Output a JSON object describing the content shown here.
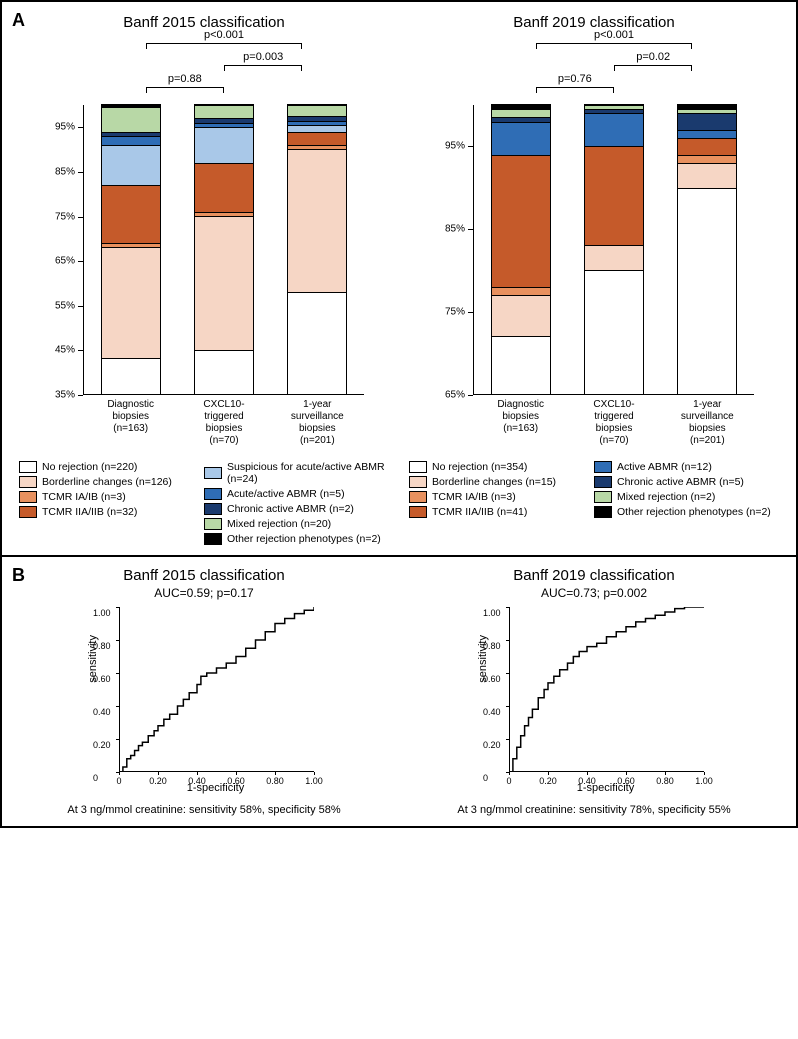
{
  "panelA": {
    "label": "A",
    "charts": [
      {
        "title": "Banff 2015 classification",
        "y_min": 35,
        "y_max": 100,
        "y_step": 10,
        "y_suffix": "%",
        "pvalues": [
          {
            "from": 0,
            "to": 1,
            "text": "p=0.88",
            "level": 2
          },
          {
            "from": 1,
            "to": 2,
            "text": "p=0.003",
            "level": 1
          },
          {
            "from": 0,
            "to": 2,
            "text": "p<0.001",
            "level": 0
          }
        ],
        "categories": [
          {
            "lines": [
              "Diagnostic",
              "biopsies",
              "(n=163)"
            ]
          },
          {
            "lines": [
              "CXCL10-",
              "triggered",
              "biopsies",
              "(n=70)"
            ]
          },
          {
            "lines": [
              "1-year",
              "surveillance",
              "biopsies",
              "(n=201)"
            ]
          }
        ],
        "series_order": [
          "no_rej",
          "borderline",
          "tcmr1",
          "tcmr2",
          "susp_abmr",
          "acute_abmr",
          "chronic_abmr",
          "mixed",
          "other"
        ],
        "bars": [
          {
            "no_rej": 43,
            "borderline": 25,
            "tcmr1": 1,
            "tcmr2": 13,
            "susp_abmr": 9,
            "acute_abmr": 2,
            "chronic_abmr": 1,
            "mixed": 5.5,
            "other": 0.5
          },
          {
            "no_rej": 45,
            "borderline": 30,
            "tcmr1": 1,
            "tcmr2": 11,
            "susp_abmr": 8,
            "acute_abmr": 1,
            "chronic_abmr": 1,
            "mixed": 3,
            "other": 0
          },
          {
            "no_rej": 58,
            "borderline": 32,
            "tcmr1": 1,
            "tcmr2": 3,
            "susp_abmr": 1.5,
            "acute_abmr": 1,
            "chronic_abmr": 1,
            "mixed": 2.5,
            "other": 0
          }
        ],
        "legend_cols": [
          [
            {
              "key": "no_rej",
              "label": "No rejection (n=220)"
            },
            {
              "key": "borderline",
              "label": "Borderline changes (n=126)"
            },
            {
              "key": "tcmr1",
              "label": "TCMR IA/IB (n=3)"
            },
            {
              "key": "tcmr2",
              "label": "TCMR IIA/IIB (n=32)"
            }
          ],
          [
            {
              "key": "susp_abmr",
              "label": "Suspicious for acute/active ABMR (n=24)"
            },
            {
              "key": "acute_abmr",
              "label": "Acute/active ABMR (n=5)"
            },
            {
              "key": "chronic_abmr",
              "label": "Chronic active ABMR (n=2)"
            },
            {
              "key": "mixed",
              "label": "Mixed rejection (n=20)"
            },
            {
              "key": "other",
              "label": "Other rejection phenotypes (n=2)"
            }
          ]
        ]
      },
      {
        "title": "Banff 2019 classification",
        "y_min": 65,
        "y_max": 100,
        "y_step": 10,
        "y_suffix": "%",
        "pvalues": [
          {
            "from": 0,
            "to": 1,
            "text": "p=0.76",
            "level": 2
          },
          {
            "from": 1,
            "to": 2,
            "text": "p=0.02",
            "level": 1
          },
          {
            "from": 0,
            "to": 2,
            "text": "p<0.001",
            "level": 0
          }
        ],
        "categories": [
          {
            "lines": [
              "Diagnostic",
              "biopsies",
              "(n=163)"
            ]
          },
          {
            "lines": [
              "CXCL10-",
              "triggered",
              "biopsies",
              "(n=70)"
            ]
          },
          {
            "lines": [
              "1-year",
              "surveillance",
              "biopsies",
              "(n=201)"
            ]
          }
        ],
        "series_order": [
          "no_rej",
          "borderline",
          "tcmr1",
          "tcmr2",
          "active_abmr",
          "chronic_abmr2",
          "mixed",
          "other"
        ],
        "bars": [
          {
            "no_rej": 72,
            "borderline": 5,
            "tcmr1": 1,
            "tcmr2": 16,
            "active_abmr": 4,
            "chronic_abmr2": 0.5,
            "mixed": 1,
            "other": 0.5
          },
          {
            "no_rej": 80,
            "borderline": 3,
            "tcmr1": 0,
            "tcmr2": 12,
            "active_abmr": 4,
            "chronic_abmr2": 0.5,
            "mixed": 0.5,
            "other": 0
          },
          {
            "no_rej": 90,
            "borderline": 3,
            "tcmr1": 1,
            "tcmr2": 2,
            "active_abmr": 1,
            "chronic_abmr2": 2,
            "mixed": 0.5,
            "other": 0.5
          }
        ],
        "legend_cols": [
          [
            {
              "key": "no_rej",
              "label": "No rejection (n=354)"
            },
            {
              "key": "borderline",
              "label": "Borderline changes (n=15)"
            },
            {
              "key": "tcmr1",
              "label": "TCMR IA/IB (n=3)"
            },
            {
              "key": "tcmr2",
              "label": "TCMR IIA/IIB (n=41)"
            }
          ],
          [
            {
              "key": "active_abmr",
              "label": "Active ABMR (n=12)"
            },
            {
              "key": "chronic_abmr2",
              "label": "Chronic active ABMR (n=5)"
            },
            {
              "key": "mixed",
              "label": "Mixed rejection (n=2)"
            },
            {
              "key": "other",
              "label": "Other rejection phenotypes (n=2)"
            }
          ]
        ]
      }
    ]
  },
  "panelB": {
    "label": "B",
    "charts": [
      {
        "title": "Banff 2015 classification",
        "auc_text": "AUC=0.59; p=0.17",
        "ticks": [
          0,
          0.2,
          0.4,
          0.6,
          0.8,
          1.0
        ],
        "tick_labels": [
          "0",
          "0.20",
          "0.40",
          "0.60",
          "0.80",
          "1.00"
        ],
        "xlabel": "1-specificity",
        "ylabel": "sensitivity",
        "caption": "At 3 ng/mmol creatinine:  sensitivity 58%, specificity 58%",
        "roc_points": [
          [
            0,
            0
          ],
          [
            0.02,
            0.03
          ],
          [
            0.04,
            0.08
          ],
          [
            0.06,
            0.1
          ],
          [
            0.08,
            0.13
          ],
          [
            0.1,
            0.16
          ],
          [
            0.12,
            0.18
          ],
          [
            0.15,
            0.22
          ],
          [
            0.18,
            0.25
          ],
          [
            0.2,
            0.28
          ],
          [
            0.23,
            0.32
          ],
          [
            0.26,
            0.35
          ],
          [
            0.3,
            0.4
          ],
          [
            0.33,
            0.44
          ],
          [
            0.36,
            0.48
          ],
          [
            0.4,
            0.53
          ],
          [
            0.42,
            0.58
          ],
          [
            0.45,
            0.6
          ],
          [
            0.5,
            0.63
          ],
          [
            0.55,
            0.66
          ],
          [
            0.6,
            0.7
          ],
          [
            0.65,
            0.75
          ],
          [
            0.7,
            0.8
          ],
          [
            0.75,
            0.85
          ],
          [
            0.8,
            0.9
          ],
          [
            0.85,
            0.93
          ],
          [
            0.9,
            0.96
          ],
          [
            0.95,
            0.98
          ],
          [
            1.0,
            1.0
          ]
        ]
      },
      {
        "title": "Banff 2019 classification",
        "auc_text": "AUC=0.73; p=0.002",
        "ticks": [
          0,
          0.2,
          0.4,
          0.6,
          0.8,
          1.0
        ],
        "tick_labels": [
          "0",
          "0.20",
          "0.40",
          "0.60",
          "0.80",
          "1.00"
        ],
        "xlabel": "1-specificity",
        "ylabel": "sensitivity",
        "caption": "At 3 ng/mmol creatinine:  sensitivity 78%, specificity 55%",
        "roc_points": [
          [
            0,
            0
          ],
          [
            0.02,
            0.08
          ],
          [
            0.04,
            0.15
          ],
          [
            0.06,
            0.22
          ],
          [
            0.08,
            0.28
          ],
          [
            0.1,
            0.33
          ],
          [
            0.12,
            0.38
          ],
          [
            0.15,
            0.45
          ],
          [
            0.18,
            0.5
          ],
          [
            0.2,
            0.54
          ],
          [
            0.23,
            0.58
          ],
          [
            0.26,
            0.62
          ],
          [
            0.3,
            0.66
          ],
          [
            0.33,
            0.7
          ],
          [
            0.36,
            0.73
          ],
          [
            0.4,
            0.76
          ],
          [
            0.45,
            0.78
          ],
          [
            0.5,
            0.82
          ],
          [
            0.55,
            0.85
          ],
          [
            0.6,
            0.88
          ],
          [
            0.65,
            0.91
          ],
          [
            0.7,
            0.93
          ],
          [
            0.75,
            0.95
          ],
          [
            0.8,
            0.97
          ],
          [
            0.85,
            0.99
          ],
          [
            0.9,
            1.0
          ],
          [
            1.0,
            1.0
          ]
        ]
      }
    ]
  },
  "colors": {
    "no_rej": "#ffffff",
    "borderline": "#f6d6c5",
    "tcmr1": "#e8915f",
    "tcmr2": "#c55a2a",
    "susp_abmr": "#a9c8e8",
    "acute_abmr": "#2f6db5",
    "active_abmr": "#2f6db5",
    "chronic_abmr": "#1a3a6e",
    "chronic_abmr2": "#1a3a6e",
    "mixed": "#b8d8a6",
    "other": "#000000",
    "roc_line": "#000000",
    "axis": "#000000",
    "bg": "#ffffff"
  },
  "fonts": {
    "title_size": 15,
    "label_size": 11,
    "tick_size": 10,
    "legend_size": 10.5
  }
}
